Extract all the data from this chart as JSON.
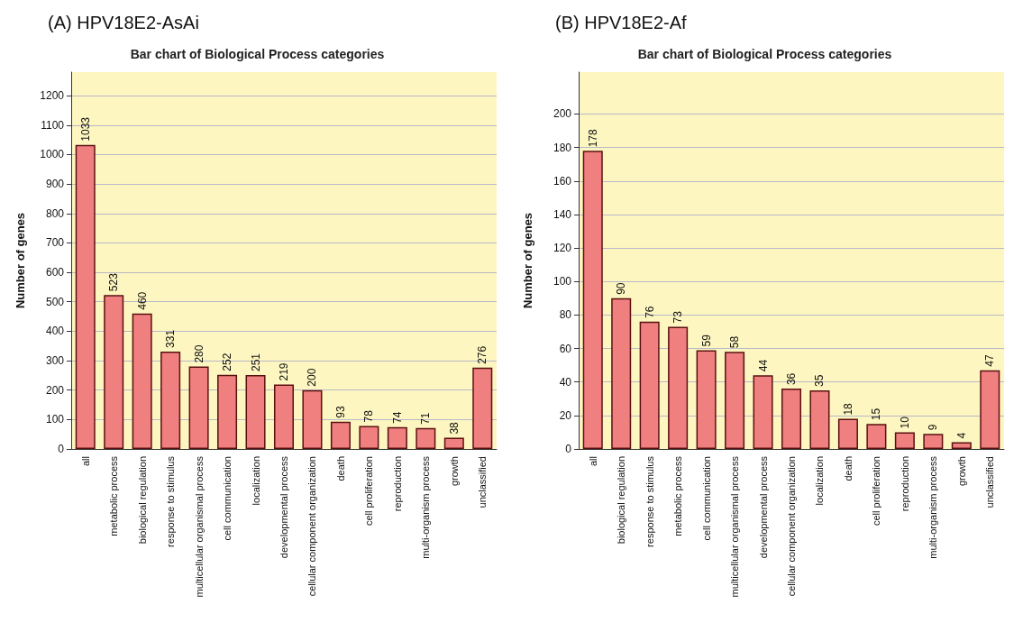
{
  "chart_data": [
    {
      "type": "bar",
      "title": "(A) HPV18E2-AsAi",
      "subtitle": "Bar chart of Biological Process categories",
      "ylabel": "Number of genes",
      "categories": [
        "all",
        "metabolic process",
        "biological regulation",
        "response to stimulus",
        "multicellular organismal process",
        "cell communication",
        "localization",
        "developmental process",
        "cellular component organization",
        "death",
        "cell proliferation",
        "reproduction",
        "multi-organism process",
        "growth",
        "unclassified"
      ],
      "values": [
        1033,
        523,
        460,
        331,
        280,
        252,
        251,
        219,
        200,
        93,
        78,
        74,
        71,
        38,
        276
      ],
      "color": "#f08080",
      "ylim": [
        0,
        1280
      ],
      "yticks": [
        0,
        100,
        200,
        300,
        400,
        500,
        600,
        700,
        800,
        900,
        1000,
        1100,
        1200
      ],
      "grid": "y",
      "data_labels": true
    },
    {
      "type": "bar",
      "title": "(B) HPV18E2-Af",
      "subtitle": "Bar chart of Biological Process categories",
      "ylabel": "Number of genes",
      "categories": [
        "all",
        "biological regulation",
        "response to stimulus",
        "metabolic process",
        "cell communication",
        "multicellular organismal process",
        "developmental process",
        "cellular component organization",
        "localization",
        "death",
        "cell proliferation",
        "reproduction",
        "multi-organism process",
        "growth",
        "unclassified"
      ],
      "values": [
        178,
        90,
        76,
        73,
        59,
        58,
        44,
        36,
        35,
        18,
        15,
        10,
        9,
        4,
        47
      ],
      "color": "#f08080",
      "ylim": [
        0,
        225
      ],
      "yticks": [
        0,
        20,
        40,
        60,
        80,
        100,
        120,
        140,
        160,
        180,
        200
      ],
      "grid": "y",
      "data_labels": true
    }
  ]
}
